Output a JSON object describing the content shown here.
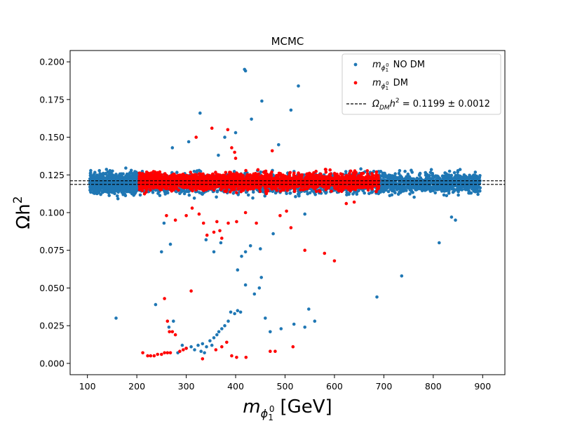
{
  "chart_data": {
    "type": "scatter",
    "title": "MCMC",
    "xlabel": {
      "main": "m",
      "sub1": "ϕ",
      "sub2": "1",
      "sup": "0",
      "unit": "[GeV]"
    },
    "ylabel": {
      "main": "Ωh",
      "sup": "2"
    },
    "xlim": [
      65,
      945
    ],
    "ylim": [
      -0.0075,
      0.2075
    ],
    "xticks": [
      100,
      200,
      300,
      400,
      500,
      600,
      700,
      800,
      900
    ],
    "yticks": [
      0.0,
      0.025,
      0.05,
      0.075,
      0.1,
      0.125,
      0.15,
      0.175,
      0.2
    ],
    "ytick_labels": [
      "0.000",
      "0.025",
      "0.050",
      "0.075",
      "0.100",
      "0.125",
      "0.150",
      "0.175",
      "0.200"
    ],
    "legend_position": "top-right",
    "colors": {
      "no_dm": "#1f77b4",
      "dm": "#ff0000",
      "ref": "#000000"
    },
    "series": [
      {
        "name": "NO DM",
        "legend": {
          "main": "m",
          "sub1": "ϕ",
          "sub2": "1",
          "sup": "0",
          "suffix": " NO DM"
        },
        "color": "#1f77b4",
        "band": {
          "x_range": [
            105,
            895
          ],
          "y_center": 0.1195,
          "y_spread": 0.0055,
          "y_extreme": [
            0.108,
            0.135
          ]
        },
        "points": [
          [
            418,
            0.195
          ],
          [
            420,
            0.194
          ],
          [
            527,
            0.184
          ],
          [
            453,
            0.174
          ],
          [
            512,
            0.168
          ],
          [
            432,
            0.162
          ],
          [
            328,
            0.166
          ],
          [
            400,
            0.153
          ],
          [
            378,
            0.15
          ],
          [
            487,
            0.145
          ],
          [
            305,
            0.147
          ],
          [
            272,
            0.143
          ],
          [
            365,
            0.138
          ],
          [
            250,
            0.074
          ],
          [
            255,
            0.093
          ],
          [
            268,
            0.079
          ],
          [
            340,
            0.082
          ],
          [
            356,
            0.074
          ],
          [
            370,
            0.08
          ],
          [
            420,
            0.074
          ],
          [
            430,
            0.078
          ],
          [
            450,
            0.076
          ],
          [
            476,
            0.086
          ],
          [
            540,
            0.099
          ],
          [
            686,
            0.044
          ],
          [
            736,
            0.058
          ],
          [
            812,
            0.08
          ],
          [
            837,
            0.097
          ],
          [
            845,
            0.095
          ],
          [
            158,
            0.03
          ],
          [
            238,
            0.039
          ],
          [
            265,
            0.024
          ],
          [
            274,
            0.028
          ],
          [
            283,
            0.007
          ],
          [
            292,
            0.012
          ],
          [
            300,
            0.01
          ],
          [
            310,
            0.011
          ],
          [
            317,
            0.009
          ],
          [
            324,
            0.012
          ],
          [
            330,
            0.008
          ],
          [
            333,
            0.013
          ],
          [
            337,
            0.007
          ],
          [
            341,
            0.011
          ],
          [
            348,
            0.015
          ],
          [
            352,
            0.012
          ],
          [
            356,
            0.017
          ],
          [
            362,
            0.019
          ],
          [
            366,
            0.021
          ],
          [
            372,
            0.023
          ],
          [
            378,
            0.025
          ],
          [
            385,
            0.028
          ],
          [
            390,
            0.034
          ],
          [
            398,
            0.033
          ],
          [
            404,
            0.035
          ],
          [
            410,
            0.034
          ],
          [
            404,
            0.062
          ],
          [
            412,
            0.071
          ],
          [
            420,
            0.052
          ],
          [
            438,
            0.046
          ],
          [
            448,
            0.05
          ],
          [
            452,
            0.057
          ],
          [
            460,
            0.03
          ],
          [
            470,
            0.021
          ],
          [
            492,
            0.023
          ],
          [
            518,
            0.026
          ],
          [
            540,
            0.024
          ],
          [
            548,
            0.036
          ],
          [
            560,
            0.028
          ]
        ]
      },
      {
        "name": "DM",
        "legend": {
          "main": "m",
          "sub1": "ϕ",
          "sub2": "1",
          "sup": "0",
          "suffix": " DM"
        },
        "color": "#ff0000",
        "band": {
          "x_range": [
            205,
            690
          ],
          "y_center": 0.1205,
          "y_spread": 0.0045,
          "y_extreme": [
            0.109,
            0.132
          ]
        },
        "points": [
          [
            352,
            0.156
          ],
          [
            320,
            0.15
          ],
          [
            384,
            0.155
          ],
          [
            392,
            0.143
          ],
          [
            398,
            0.14
          ],
          [
            474,
            0.141
          ],
          [
            400,
            0.136
          ],
          [
            260,
            0.098
          ],
          [
            278,
            0.095
          ],
          [
            300,
            0.098
          ],
          [
            312,
            0.103
          ],
          [
            326,
            0.099
          ],
          [
            335,
            0.093
          ],
          [
            342,
            0.085
          ],
          [
            356,
            0.087
          ],
          [
            362,
            0.094
          ],
          [
            368,
            0.088
          ],
          [
            372,
            0.083
          ],
          [
            385,
            0.093
          ],
          [
            402,
            0.094
          ],
          [
            420,
            0.1
          ],
          [
            442,
            0.093
          ],
          [
            490,
            0.098
          ],
          [
            503,
            0.101
          ],
          [
            512,
            0.09
          ],
          [
            540,
            0.075
          ],
          [
            580,
            0.073
          ],
          [
            600,
            0.068
          ],
          [
            624,
            0.106
          ],
          [
            640,
            0.107
          ],
          [
            310,
            0.048
          ],
          [
            256,
            0.043
          ],
          [
            262,
            0.028
          ],
          [
            266,
            0.021
          ],
          [
            272,
            0.021
          ],
          [
            278,
            0.019
          ],
          [
            212,
            0.007
          ],
          [
            222,
            0.005
          ],
          [
            228,
            0.005
          ],
          [
            235,
            0.005
          ],
          [
            242,
            0.006
          ],
          [
            250,
            0.006
          ],
          [
            256,
            0.007
          ],
          [
            262,
            0.007
          ],
          [
            268,
            0.007
          ],
          [
            287,
            0.008
          ],
          [
            294,
            0.009
          ],
          [
            300,
            0.01
          ],
          [
            333,
            0.003
          ],
          [
            360,
            0.009
          ],
          [
            372,
            0.011
          ],
          [
            382,
            0.014
          ],
          [
            392,
            0.005
          ],
          [
            402,
            0.004
          ],
          [
            421,
            0.004
          ],
          [
            470,
            0.008
          ],
          [
            480,
            0.008
          ],
          [
            516,
            0.011
          ]
        ]
      }
    ],
    "reference": {
      "legend": "Ω_DM h² = 0.1199 ± 0.0012",
      "legend_parts": {
        "omega": "Ω",
        "sub": "DM",
        "h": "h",
        "sup": "2",
        "rest": " = 0.1199 ± 0.0012"
      },
      "value": 0.1199,
      "err": 0.0012
    }
  }
}
